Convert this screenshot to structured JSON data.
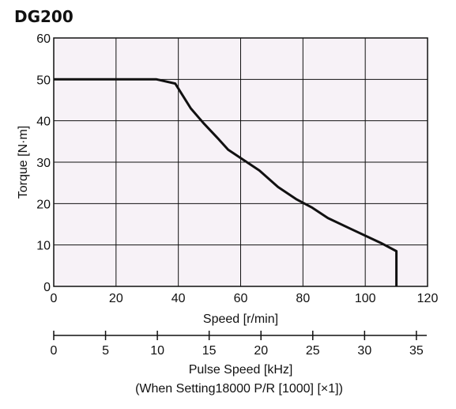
{
  "chart_data": {
    "type": "line",
    "title": "DG200",
    "xlabel": "Speed [r/min]",
    "ylabel": "Torque [N·m]",
    "xlim": [
      0,
      120
    ],
    "ylim": [
      0,
      60
    ],
    "x_ticks": [
      "0",
      "20",
      "40",
      "60",
      "80",
      "100",
      "120"
    ],
    "y_ticks": [
      "0",
      "10",
      "20",
      "30",
      "40",
      "50",
      "60"
    ],
    "grid": true,
    "background_color": "#f7f2f7",
    "line_color": "#111111",
    "series": [
      {
        "points": [
          [
            0,
            50
          ],
          [
            33,
            50
          ],
          [
            39,
            49
          ],
          [
            44,
            43
          ],
          [
            48,
            39.5
          ],
          [
            53,
            35.5
          ],
          [
            56,
            33
          ],
          [
            60,
            31
          ],
          [
            66,
            28
          ],
          [
            72,
            24
          ],
          [
            78,
            21
          ],
          [
            83,
            19
          ],
          [
            88,
            16.5
          ],
          [
            95,
            14
          ],
          [
            105,
            10.5
          ],
          [
            110,
            8.5
          ],
          [
            110,
            0
          ]
        ]
      }
    ],
    "secondary_x_axis": {
      "label_line1": "Pulse Speed [kHz]",
      "label_line2": "(When Setting18000 P/R [1000] [×1])",
      "xlim": [
        0,
        36
      ],
      "ticks": [
        "0",
        "5",
        "10",
        "15",
        "20",
        "25",
        "30",
        "35"
      ]
    }
  }
}
